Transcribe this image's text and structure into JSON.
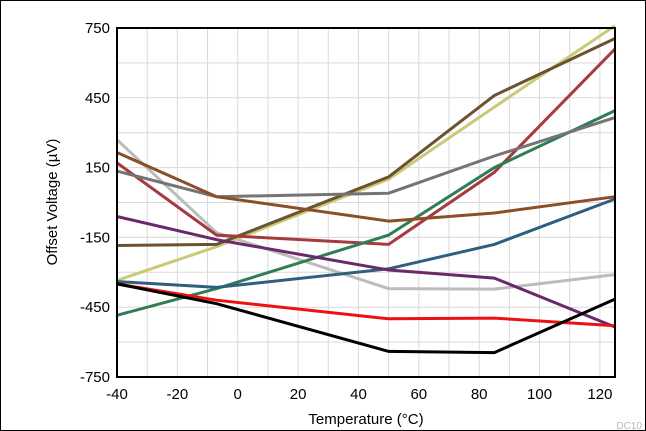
{
  "chart_data": {
    "type": "line",
    "title": "",
    "xlabel": "Temperature (°C)",
    "ylabel": "Offset Voltage (µV)",
    "xlim": [
      -40,
      125
    ],
    "ylim": [
      -750,
      750
    ],
    "x_ticks": [
      -40,
      -20,
      0,
      20,
      40,
      60,
      80,
      100,
      120
    ],
    "y_ticks": [
      750,
      450,
      150,
      -150,
      -450,
      -750
    ],
    "grid": true,
    "legend": "none",
    "series": [
      {
        "color": "#bcbcbc",
        "x": [
          -40,
          -7,
          50,
          85,
          125
        ],
        "y": [
          270,
          -130,
          -370,
          -372,
          -310
        ]
      },
      {
        "color": "#c9c97a",
        "x": [
          -40,
          -7,
          50,
          85,
          125
        ],
        "y": [
          -335,
          -190,
          100,
          410,
          760
        ]
      },
      {
        "color": "#6b5331",
        "x": [
          -40,
          -7,
          50,
          85,
          125
        ],
        "y": [
          -185,
          -180,
          110,
          460,
          705
        ]
      },
      {
        "color": "#a53a3f",
        "x": [
          -40,
          -7,
          50,
          85,
          125
        ],
        "y": [
          170,
          -140,
          -180,
          130,
          660
        ]
      },
      {
        "color": "#2e7d55",
        "x": [
          -40,
          -7,
          50,
          85,
          125
        ],
        "y": [
          -485,
          -370,
          -140,
          150,
          395
        ]
      },
      {
        "color": "#2f5f7f",
        "x": [
          -40,
          -7,
          50,
          85,
          125
        ],
        "y": [
          -340,
          -365,
          -285,
          -180,
          15
        ]
      },
      {
        "color": "#747474",
        "x": [
          -40,
          -7,
          50,
          85,
          125
        ],
        "y": [
          135,
          25,
          40,
          200,
          365
        ]
      },
      {
        "color": "#8b4e26",
        "x": [
          -40,
          -7,
          50,
          85,
          125
        ],
        "y": [
          215,
          25,
          -80,
          -45,
          25
        ]
      },
      {
        "color": "#6a2a6a",
        "x": [
          -40,
          -7,
          50,
          85,
          125
        ],
        "y": [
          -60,
          -160,
          -290,
          -325,
          -535
        ]
      },
      {
        "color": "#ee1111",
        "x": [
          -40,
          -7,
          50,
          85,
          125
        ],
        "y": [
          -350,
          -420,
          -500,
          -497,
          -530
        ]
      },
      {
        "color": "#000000",
        "x": [
          -40,
          -7,
          50,
          85,
          125
        ],
        "y": [
          -350,
          -435,
          -640,
          -645,
          -415
        ]
      }
    ]
  },
  "figure_code": "DC10"
}
